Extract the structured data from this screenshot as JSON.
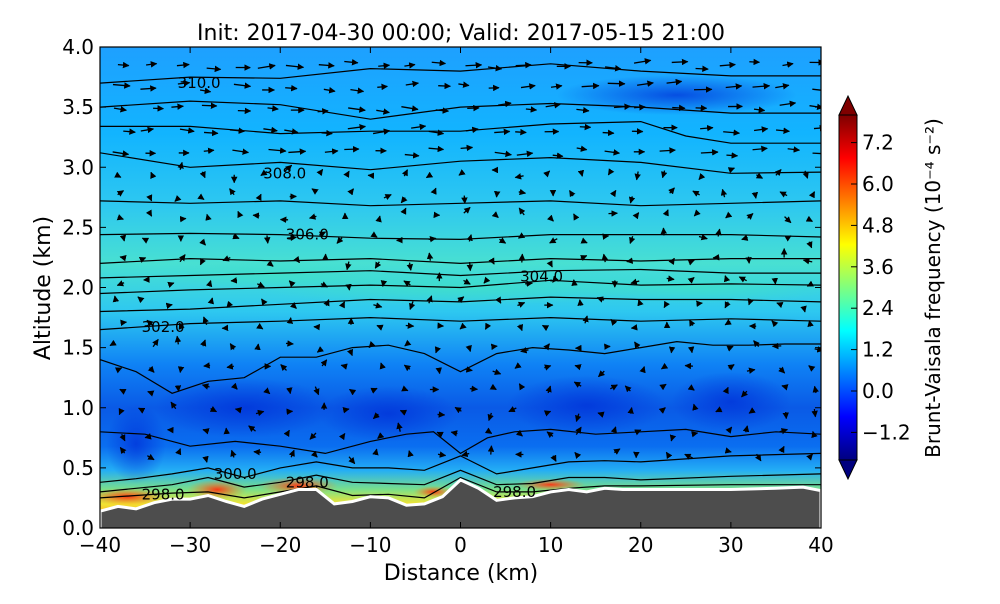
{
  "chart_data": {
    "type": "heatmap",
    "title": "Init: 2017-04-30 00:00; Valid: 2017-05-15 21:00",
    "xlabel": "Distance (km)",
    "ylabel": "Altitude (km)",
    "xlim": [
      -40,
      40
    ],
    "ylim": [
      0.0,
      4.0
    ],
    "xticks": [
      -40,
      -30,
      -20,
      -10,
      0,
      10,
      20,
      30,
      40
    ],
    "xtick_labels": [
      "−40",
      "−30",
      "−20",
      "−10",
      "0",
      "10",
      "20",
      "30",
      "40"
    ],
    "yticks": [
      0.0,
      0.5,
      1.0,
      1.5,
      2.0,
      2.5,
      3.0,
      3.5,
      4.0
    ],
    "ytick_labels": [
      "0.0",
      "0.5",
      "1.0",
      "1.5",
      "2.0",
      "2.5",
      "3.0",
      "3.5",
      "4.0"
    ],
    "colorbar": {
      "label": "Brunt-Vaisala frequency (10⁻⁴ s⁻²)",
      "ticks": [
        -1.2,
        0.0,
        1.2,
        2.4,
        3.6,
        4.8,
        6.0,
        7.2
      ],
      "tick_labels": [
        "−1.2",
        "0.0",
        "1.2",
        "2.4",
        "3.6",
        "4.8",
        "6.0",
        "7.2"
      ],
      "range": [
        -2.0,
        8.0
      ],
      "extend": "both",
      "colormap": "jet"
    },
    "terrain": {
      "x": [
        -40,
        -38,
        -36,
        -34,
        -32,
        -30,
        -28,
        -26,
        -24,
        -22,
        -20,
        -18,
        -16,
        -14,
        -12,
        -10,
        -8,
        -6,
        -4,
        -2,
        0,
        2,
        4,
        6,
        8,
        10,
        12,
        14,
        16,
        18,
        20,
        25,
        30,
        35,
        38,
        40
      ],
      "y": [
        0.14,
        0.18,
        0.16,
        0.21,
        0.24,
        0.24,
        0.27,
        0.22,
        0.18,
        0.24,
        0.28,
        0.32,
        0.32,
        0.2,
        0.22,
        0.26,
        0.25,
        0.19,
        0.2,
        0.26,
        0.4,
        0.33,
        0.23,
        0.25,
        0.26,
        0.3,
        0.32,
        0.3,
        0.33,
        0.32,
        0.32,
        0.32,
        0.32,
        0.33,
        0.34,
        0.31
      ],
      "color": "#4d4d4d"
    },
    "contours": [
      {
        "value": 298.0,
        "label": "298.0",
        "x": [
          -40,
          -36,
          -32,
          -28,
          -24,
          -20,
          -16,
          -12,
          -8,
          -4,
          0,
          4,
          8,
          12,
          16,
          20,
          30,
          40
        ],
        "y": [
          0.25,
          0.27,
          0.29,
          0.3,
          0.25,
          0.3,
          0.35,
          0.27,
          0.28,
          0.25,
          0.42,
          0.3,
          0.3,
          0.33,
          0.35,
          0.35,
          0.36,
          0.36
        ]
      },
      {
        "value": 300.0,
        "label": "300.0",
        "x": [
          -40,
          -36,
          -32,
          -28,
          -24,
          -20,
          -16,
          -12,
          -8,
          -4,
          0,
          4,
          8,
          12,
          16,
          20,
          30,
          40
        ],
        "y": [
          0.3,
          0.33,
          0.36,
          0.42,
          0.34,
          0.38,
          0.44,
          0.38,
          0.37,
          0.36,
          0.48,
          0.36,
          0.37,
          0.42,
          0.42,
          0.4,
          0.43,
          0.45
        ]
      },
      {
        "value": 302.0,
        "x": [
          -40,
          -36,
          -32,
          -28,
          -24,
          -20,
          -16,
          -12,
          -8,
          -4,
          0,
          4,
          8,
          12,
          16,
          20,
          30,
          40
        ],
        "y": [
          0.38,
          0.41,
          0.45,
          0.5,
          0.42,
          0.5,
          0.55,
          0.5,
          0.5,
          0.48,
          0.6,
          0.45,
          0.5,
          0.55,
          0.56,
          0.55,
          0.6,
          0.62
        ]
      },
      {
        "value": 302.0,
        "x": [
          -40,
          -35,
          -30,
          -25,
          -20,
          -15,
          -10,
          -6,
          -3,
          0,
          3,
          6,
          10,
          15,
          20,
          25,
          30,
          35,
          40
        ],
        "y": [
          0.8,
          0.78,
          0.68,
          0.72,
          0.68,
          0.62,
          0.72,
          0.78,
          0.8,
          0.62,
          0.75,
          0.8,
          0.82,
          0.78,
          0.8,
          0.82,
          0.76,
          0.8,
          0.78
        ]
      },
      {
        "value": 302.0,
        "x": [
          -40,
          -36,
          -32,
          -28,
          -24,
          -20,
          -16,
          -12,
          -8,
          -4,
          0,
          4,
          8,
          12,
          16,
          20,
          24,
          28,
          32,
          36,
          40
        ],
        "y": [
          1.4,
          1.3,
          1.12,
          1.22,
          1.25,
          1.42,
          1.42,
          1.5,
          1.52,
          1.45,
          1.3,
          1.45,
          1.5,
          1.48,
          1.45,
          1.5,
          1.55,
          1.52,
          1.52,
          1.53,
          1.53
        ]
      },
      {
        "value": 302.0,
        "label": "302.0",
        "x": [
          -40,
          -30,
          -20,
          -10,
          0,
          10,
          20,
          30,
          40
        ],
        "y": [
          1.65,
          1.7,
          1.72,
          1.75,
          1.72,
          1.75,
          1.72,
          1.74,
          1.72
        ]
      },
      {
        "value": 304.0,
        "x": [
          -40,
          -30,
          -20,
          -10,
          0,
          10,
          20,
          30,
          40
        ],
        "y": [
          1.8,
          1.82,
          1.86,
          1.9,
          1.88,
          1.92,
          1.9,
          1.9,
          1.88
        ]
      },
      {
        "value": 304.0,
        "x": [
          -40,
          -30,
          -20,
          -10,
          0,
          10,
          20,
          30,
          40
        ],
        "y": [
          1.95,
          1.98,
          2.0,
          2.02,
          2.0,
          2.06,
          2.02,
          2.03,
          2.02
        ]
      },
      {
        "value": 304.0,
        "label": "304.0",
        "x": [
          -40,
          -30,
          -20,
          -10,
          0,
          10,
          20,
          30,
          40
        ],
        "y": [
          2.08,
          2.1,
          2.12,
          2.14,
          2.1,
          2.14,
          2.15,
          2.12,
          2.12
        ]
      },
      {
        "value": 304.0,
        "x": [
          -40,
          -30,
          -20,
          -10,
          0,
          10,
          20,
          30,
          40
        ],
        "y": [
          2.2,
          2.24,
          2.22,
          2.24,
          2.2,
          2.24,
          2.22,
          2.24,
          2.24
        ]
      },
      {
        "value": 306.0,
        "label": "306.0",
        "x": [
          -40,
          -30,
          -20,
          -10,
          0,
          10,
          20,
          30,
          40
        ],
        "y": [
          2.44,
          2.45,
          2.44,
          2.41,
          2.4,
          2.44,
          2.44,
          2.44,
          2.42
        ]
      },
      {
        "value": 306.0,
        "x": [
          -40,
          -30,
          -20,
          -10,
          0,
          10,
          20,
          30,
          40
        ],
        "y": [
          2.72,
          2.7,
          2.72,
          2.68,
          2.7,
          2.72,
          2.68,
          2.7,
          2.72
        ]
      },
      {
        "value": 308.0,
        "label": "308.0",
        "x": [
          -40,
          -30,
          -20,
          -10,
          0,
          10,
          20,
          30,
          40
        ],
        "y": [
          3.12,
          3.0,
          3.04,
          2.98,
          3.05,
          3.08,
          3.04,
          2.95,
          2.96
        ]
      },
      {
        "value": 308.0,
        "x": [
          -40,
          -30,
          -20,
          -10,
          0,
          10,
          20,
          25,
          30,
          40
        ],
        "y": [
          3.34,
          3.34,
          3.28,
          3.3,
          3.3,
          3.36,
          3.38,
          3.26,
          3.2,
          3.2
        ]
      },
      {
        "value": 310.0,
        "x": [
          -40,
          -30,
          -20,
          -10,
          0,
          10,
          20,
          30,
          40
        ],
        "y": [
          3.5,
          3.55,
          3.52,
          3.4,
          3.5,
          3.53,
          3.5,
          3.45,
          3.45
        ]
      },
      {
        "value": 310.0,
        "label": "310.0",
        "x": [
          -40,
          -30,
          -20,
          -10,
          0,
          10,
          20,
          30,
          40
        ],
        "y": [
          3.7,
          3.75,
          3.74,
          3.82,
          3.8,
          3.86,
          3.8,
          3.76,
          3.76
        ]
      }
    ]
  }
}
